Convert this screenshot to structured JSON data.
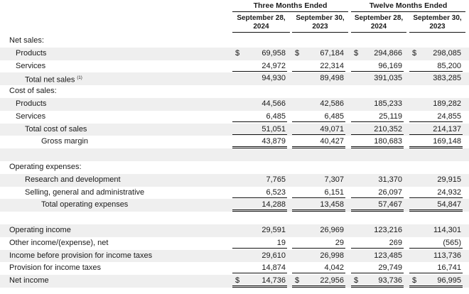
{
  "header": {
    "groups": [
      "Three Months Ended",
      "Twelve Months Ended"
    ],
    "columns": [
      [
        "September 28,",
        "2024"
      ],
      [
        "September 30,",
        "2023"
      ],
      [
        "September 28,",
        "2024"
      ],
      [
        "September 30,",
        "2023"
      ]
    ]
  },
  "rows": [
    {
      "label": "Net sales:",
      "indent": 0
    },
    {
      "label": "Products",
      "indent": 1,
      "dollar": true,
      "values": [
        "69,958",
        "67,184",
        "294,866",
        "298,085"
      ]
    },
    {
      "label": "Services",
      "indent": 1,
      "underline": "single",
      "values": [
        "24,972",
        "22,314",
        "96,169",
        "85,200"
      ]
    },
    {
      "label": "Total net sales",
      "footnote": "(1)",
      "indent": 2,
      "values": [
        "94,930",
        "89,498",
        "391,035",
        "383,285"
      ]
    },
    {
      "label": "Cost of sales:",
      "indent": 0
    },
    {
      "label": "Products",
      "indent": 1,
      "values": [
        "44,566",
        "42,586",
        "185,233",
        "189,282"
      ]
    },
    {
      "label": "Services",
      "indent": 1,
      "underline": "single",
      "values": [
        "6,485",
        "6,485",
        "25,119",
        "24,855"
      ]
    },
    {
      "label": "Total cost of sales",
      "indent": 2,
      "underline": "single",
      "values": [
        "51,051",
        "49,071",
        "210,352",
        "214,137"
      ]
    },
    {
      "label": "Gross margin",
      "indent": 3,
      "underline": "double",
      "values": [
        "43,879",
        "40,427",
        "180,683",
        "169,148"
      ]
    },
    {
      "label": "",
      "indent": 0
    },
    {
      "label": "Operating expenses:",
      "indent": 0
    },
    {
      "label": "Research and development",
      "indent": 2,
      "values": [
        "7,765",
        "7,307",
        "31,370",
        "29,915"
      ]
    },
    {
      "label": "Selling, general and administrative",
      "indent": 2,
      "underline": "single",
      "values": [
        "6,523",
        "6,151",
        "26,097",
        "24,932"
      ]
    },
    {
      "label": "Total operating expenses",
      "indent": 3,
      "underline": "double",
      "values": [
        "14,288",
        "13,458",
        "57,467",
        "54,847"
      ]
    },
    {
      "label": "",
      "indent": 0
    },
    {
      "label": "Operating income",
      "indent": 0,
      "values": [
        "29,591",
        "26,969",
        "123,216",
        "114,301"
      ]
    },
    {
      "label": "Other income/(expense), net",
      "indent": 0,
      "underline": "single",
      "values": [
        "19",
        "29",
        "269",
        "(565)"
      ]
    },
    {
      "label": "Income before provision for income taxes",
      "indent": 0,
      "values": [
        "29,610",
        "26,998",
        "123,485",
        "113,736"
      ]
    },
    {
      "label": "Provision for income taxes",
      "indent": 0,
      "underline": "single",
      "values": [
        "14,874",
        "4,042",
        "29,749",
        "16,741"
      ]
    },
    {
      "label": "Net income",
      "indent": 0,
      "dollar": true,
      "underline": "double",
      "values": [
        "14,736",
        "22,956",
        "93,736",
        "96,995"
      ]
    }
  ],
  "currency_symbol": "$"
}
